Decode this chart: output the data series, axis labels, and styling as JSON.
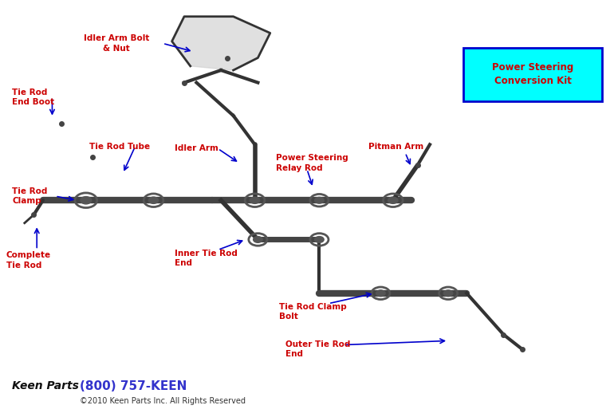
{
  "bg_color": "#ffffff",
  "label_color": "#cc0000",
  "arrow_color": "#0000cc",
  "line_color": "#000000",
  "box_color": "#00ffff",
  "box_border": "#0000cc",
  "box_text_color": "#cc0000",
  "box_text": "Power Steering\nConversion Kit",
  "phone_text": "(800) 757-KEEN",
  "copyright_text": "©2010 Keen Parts Inc. All Rights Reserved",
  "phone_color": "#3333cc"
}
